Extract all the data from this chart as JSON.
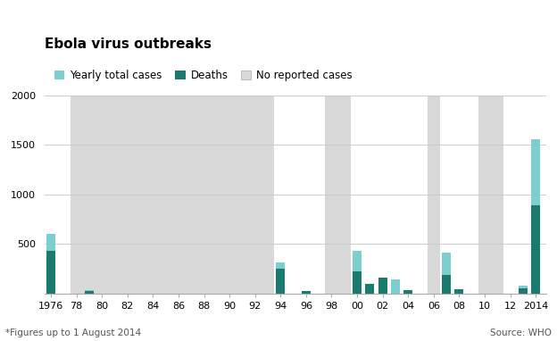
{
  "title": "Ebola virus outbreaks",
  "footnote": "*Figures up to 1 August 2014",
  "source": "Source: WHO",
  "legend_labels": [
    "Yearly total cases",
    "Deaths",
    "No reported cases"
  ],
  "color_cases": "#7dcece",
  "color_deaths": "#1a7a6e",
  "color_no_report": "#d8d8d8",
  "color_bg": "#f0f0f0",
  "years": [
    1976,
    1979,
    1994,
    1995,
    1996,
    2000,
    2001,
    2002,
    2003,
    2004,
    2007,
    2008,
    2012,
    2013,
    2014
  ],
  "total_cases": [
    602,
    34,
    315,
    0,
    0,
    425,
    0,
    0,
    143,
    0,
    413,
    0,
    0,
    77,
    1553
  ],
  "deaths": [
    431,
    22,
    250,
    0,
    21,
    224,
    97,
    157,
    0,
    29,
    187,
    37,
    0,
    49,
    887
  ],
  "no_report_bands": [
    [
      1977.5,
      1979.5
    ],
    [
      1979.5,
      1993.5
    ],
    [
      1997.5,
      1999.5
    ],
    [
      2001.5,
      2001.5
    ],
    [
      2005.5,
      2006.5
    ],
    [
      2009.5,
      2011.5
    ],
    [
      2013.5,
      2013.5
    ]
  ],
  "ylim": [
    0,
    2000
  ],
  "yticks": [
    0,
    500,
    1000,
    1500,
    2000
  ],
  "xticks": [
    1976,
    1978,
    1980,
    1982,
    1984,
    1986,
    1988,
    1990,
    1992,
    1994,
    1996,
    1998,
    2000,
    2002,
    2004,
    2006,
    2008,
    2010,
    2012,
    2014
  ],
  "xticklabels": [
    "1976",
    "78",
    "80",
    "82",
    "84",
    "86",
    "88",
    "90",
    "92",
    "94",
    "96",
    "98",
    "00",
    "02",
    "04",
    "06",
    "08",
    "10",
    "12",
    "2014"
  ]
}
